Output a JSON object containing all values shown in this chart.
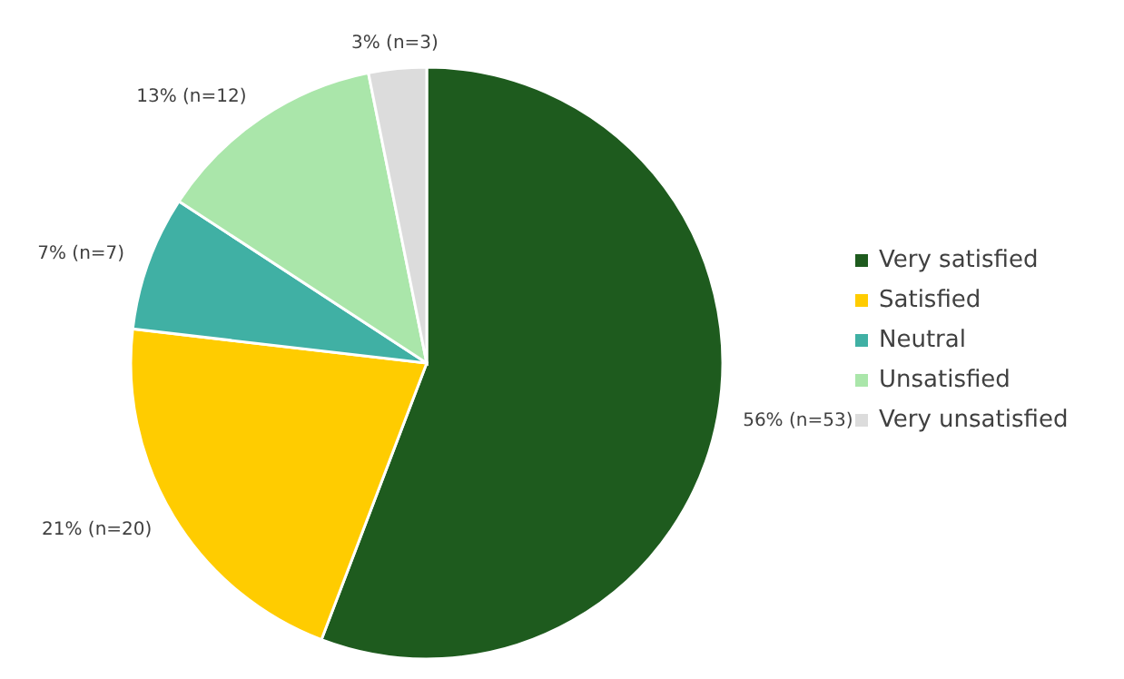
{
  "chart_data": {
    "type": "pie",
    "categories": [
      "Very satisfied",
      "Satisfied",
      "Neutral",
      "Unsatisfied",
      "Very unsatisfied"
    ],
    "values": [
      53,
      20,
      7,
      12,
      3
    ],
    "value_labels": [
      "56% (n=53)",
      "21% (n=20)",
      "7% (n=7)",
      "13% (n=12)",
      "3% (n=3)"
    ],
    "colors": [
      "#1e5b1e",
      "#ffcc00",
      "#40b0a4",
      "#aae6aa",
      "#dcdcdc"
    ],
    "legend": "right"
  }
}
